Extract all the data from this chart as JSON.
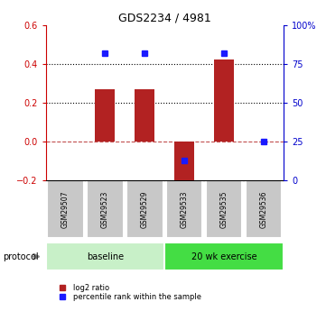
{
  "title": "GDS2234 / 4981",
  "samples": [
    "GSM29507",
    "GSM29523",
    "GSM29529",
    "GSM29533",
    "GSM29535",
    "GSM29536"
  ],
  "log2_ratio": [
    0.0,
    0.27,
    0.27,
    -0.22,
    0.42,
    0.0
  ],
  "percentile_rank": [
    null,
    82,
    82,
    13,
    82,
    25
  ],
  "ylim_left": [
    -0.2,
    0.6
  ],
  "ylim_right": [
    0,
    100
  ],
  "yticks_left": [
    -0.2,
    0.0,
    0.2,
    0.4,
    0.6
  ],
  "yticks_right": [
    0,
    25,
    50,
    75,
    100
  ],
  "ytick_labels_right": [
    "0",
    "25",
    "50",
    "75",
    "100%"
  ],
  "hlines_dotted": [
    0.2,
    0.4
  ],
  "hline_dashed": 0.0,
  "bar_color": "#b22222",
  "scatter_color": "#1a1aff",
  "bar_width": 0.5,
  "protocol_groups": [
    {
      "label": "baseline",
      "start": 0,
      "end": 2,
      "color": "#c8f0c8"
    },
    {
      "label": "20 wk exercise",
      "start": 3,
      "end": 5,
      "color": "#44dd44"
    }
  ],
  "protocol_label": "protocol",
  "legend_items": [
    {
      "label": "log2 ratio",
      "color": "#b22222"
    },
    {
      "label": "percentile rank within the sample",
      "color": "#1a1aff"
    }
  ],
  "tick_label_color_left": "#cc0000",
  "tick_label_color_right": "#0000cc",
  "bg_color": "#ffffff",
  "sample_box_color": "#c8c8c8"
}
